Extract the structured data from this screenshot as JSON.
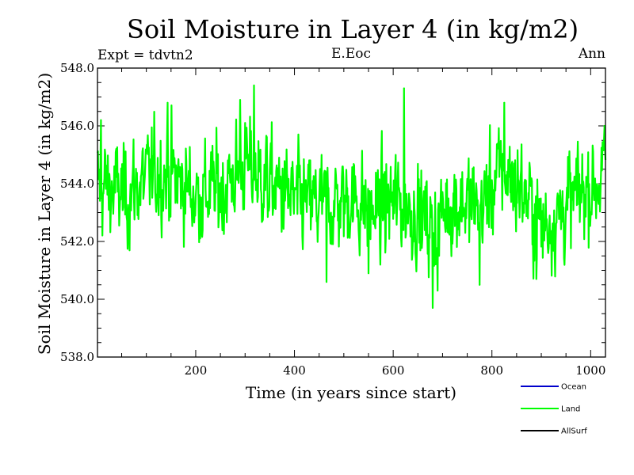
{
  "chart_data": {
    "type": "line",
    "title": "Soil Moisture in Layer 4 (in kg/m2)",
    "expt_label": "Expt = tdvtn2",
    "run_label": "E.Eoc",
    "season_label": "Ann",
    "xlabel": "Time (in years since start)",
    "ylabel": "Soil Moisture in Layer 4 (in kg/m2)",
    "xlim": [
      1,
      1030
    ],
    "ylim": [
      538.0,
      548.0
    ],
    "xticks": [
      200,
      400,
      600,
      800,
      1000
    ],
    "xtick_labels": [
      "200",
      "400",
      "600",
      "800",
      "1000"
    ],
    "yticks": [
      538.0,
      540.0,
      542.0,
      544.0,
      546.0,
      548.0
    ],
    "ytick_labels": [
      "538.0",
      "540.0",
      "542.0",
      "544.0",
      "546.0",
      "548.0"
    ],
    "legend_position": "bottom-right",
    "legend": [
      {
        "name": "Ocean",
        "color": "#0000cc"
      },
      {
        "name": "Land",
        "color": "#00ff00"
      },
      {
        "name": "AllSurf",
        "color": "#000000"
      }
    ],
    "series": [
      {
        "name": "Land",
        "color": "#00ff00",
        "x_start": 1,
        "x_step": 1,
        "n_points": 1030,
        "baseline_x": [
          1,
          60,
          120,
          150,
          200,
          250,
          300,
          340,
          400,
          460,
          520,
          560,
          600,
          650,
          680,
          720,
          780,
          820,
          860,
          900,
          940,
          980,
          1030
        ],
        "baseline_y": [
          544.0,
          543.6,
          544.4,
          544.3,
          543.6,
          543.8,
          544.6,
          544.1,
          543.4,
          543.2,
          543.5,
          543.0,
          543.4,
          543.0,
          542.5,
          543.4,
          543.2,
          544.5,
          543.8,
          542.5,
          543.0,
          543.7,
          544.3
        ],
        "noise_sd": 0.85,
        "observed_max": 547.4,
        "observed_min": 539.7,
        "peaks": [
          [
            318,
            547.4
          ],
          [
            622,
            547.3
          ],
          [
            290,
            546.9
          ],
          [
            143,
            546.8
          ],
          [
            825,
            546.8
          ],
          [
            8,
            546.2
          ],
          [
            1028,
            546.0
          ]
        ],
        "troughs": [
          [
            680,
            539.7
          ],
          [
            690,
            540.3
          ],
          [
            775,
            540.5
          ],
          [
            890,
            540.7
          ],
          [
            465,
            540.6
          ],
          [
            550,
            540.9
          ]
        ]
      }
    ]
  }
}
